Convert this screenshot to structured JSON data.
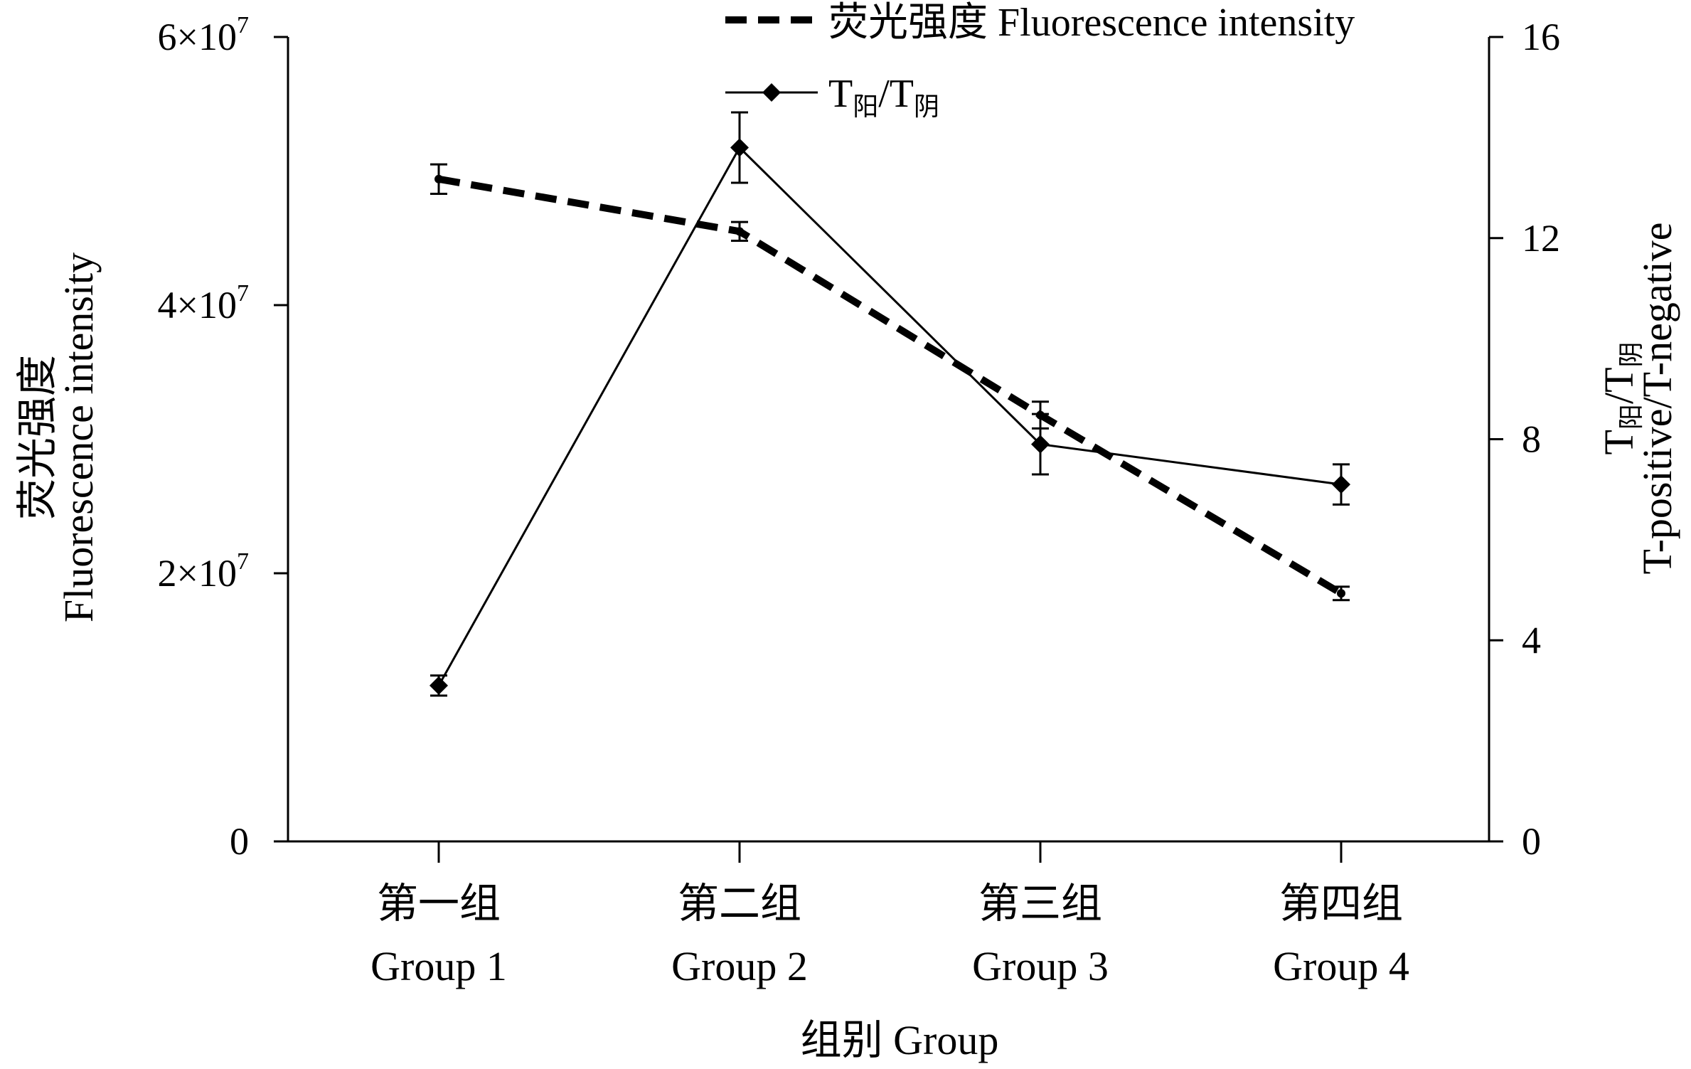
{
  "chart_data": {
    "type": "line",
    "categories": [
      {
        "zh": "第一组",
        "en": "Group 1"
      },
      {
        "zh": "第二组",
        "en": "Group 2"
      },
      {
        "zh": "第三组",
        "en": "Group 3"
      },
      {
        "zh": "第四组",
        "en": "Group 4"
      }
    ],
    "xlabel": "组别 Group",
    "ylabel_left": {
      "zh": "荧光强度",
      "en": "Fluorescence intensity"
    },
    "ylabel_right": {
      "line1_main1": "T",
      "line1_sub1": "阳",
      "line1_mid": "/T",
      "line1_sub2": "阴",
      "line2": "T-positive/T-negative"
    },
    "y_left": {
      "min": 0,
      "max": 60000000,
      "ticks": [
        {
          "value": 0,
          "mant": "0",
          "exp": ""
        },
        {
          "value": 20000000,
          "mant": "2×10",
          "exp": "7"
        },
        {
          "value": 40000000,
          "mant": "4×10",
          "exp": "7"
        },
        {
          "value": 60000000,
          "mant": "6×10",
          "exp": "7"
        }
      ]
    },
    "y_right": {
      "min": 0,
      "max": 16,
      "ticks": [
        {
          "value": 0,
          "label": "0"
        },
        {
          "value": 4,
          "label": "4"
        },
        {
          "value": 8,
          "label": "8"
        },
        {
          "value": 12,
          "label": "12"
        },
        {
          "value": 16,
          "label": "16"
        }
      ]
    },
    "series": [
      {
        "name": "荧光强度 Fluorescence intensity",
        "axis": "left",
        "style": "dashed",
        "values": [
          49400000,
          45500000,
          31800000,
          18500000
        ],
        "errors": [
          1100000,
          700000,
          1000000,
          500000
        ]
      },
      {
        "name_main1": "T",
        "name_sub1": "阳",
        "name_mid": "/T",
        "name_sub2": "阴",
        "axis": "right",
        "style": "solid",
        "marker": "diamond",
        "values": [
          3.1,
          13.8,
          7.9,
          7.1
        ],
        "errors": [
          0.2,
          0.7,
          0.6,
          0.4
        ]
      }
    ],
    "grid": false,
    "legend": "top"
  }
}
